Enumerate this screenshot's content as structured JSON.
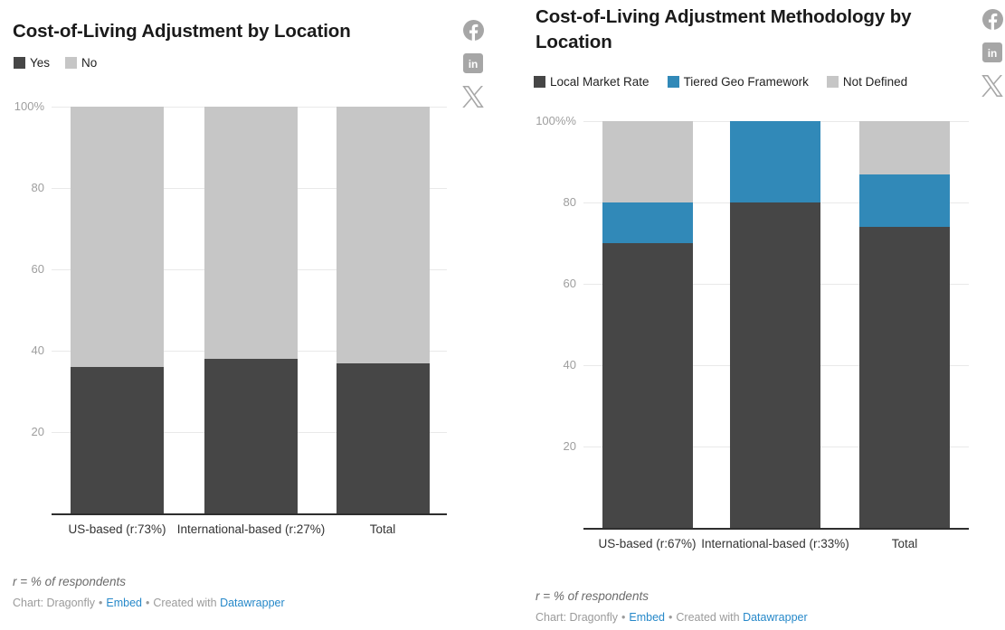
{
  "page": {
    "background": "#ffffff"
  },
  "colors": {
    "dark_series": "#464646",
    "blue_series": "#3189b8",
    "gray_series": "#c6c6c6",
    "link_blue": "#2688c9",
    "icon_gray": "#a6a6a6",
    "gridline": "#e9e9e9",
    "axis_line": "#2e2e2e"
  },
  "icons": {
    "facebook": "facebook-share-icon",
    "linkedin": "linkedin-share-icon",
    "x": "x-share-icon"
  },
  "chart_data": [
    {
      "type": "bar",
      "stacked": true,
      "orientation": "vertical",
      "title": "Cost-of-Living Adjustment by Location",
      "categories": [
        "US-based (r:73%)",
        "International-based (r:27%)",
        "Total"
      ],
      "series": [
        {
          "name": "Yes",
          "color": "#464646",
          "values": [
            36,
            38,
            37
          ]
        },
        {
          "name": "No",
          "color": "#c6c6c6",
          "values": [
            64,
            62,
            63
          ]
        }
      ],
      "ylim": [
        0,
        100
      ],
      "unit": "%",
      "yticks": [
        {
          "value": 100,
          "label": "100%"
        },
        {
          "value": 80,
          "label": "80"
        },
        {
          "value": 60,
          "label": "60"
        },
        {
          "value": 40,
          "label": "40"
        },
        {
          "value": 20,
          "label": "20"
        }
      ],
      "grid": true,
      "legend_position": "top-left",
      "footnote": "r = % of respondents",
      "byline": {
        "prefix": "Chart: Dragonfly",
        "sep": "•",
        "embed": "Embed",
        "middle": "Created with",
        "tool": "Datawrapper"
      }
    },
    {
      "type": "bar",
      "stacked": true,
      "orientation": "vertical",
      "title": "Cost-of-Living Adjustment Methodology by Location",
      "categories": [
        "US-based (r:67%)",
        "International-based (r:33%)",
        "Total"
      ],
      "series": [
        {
          "name": "Local Market Rate",
          "color": "#464646",
          "values": [
            70,
            80,
            74
          ]
        },
        {
          "name": "Tiered Geo Framework",
          "color": "#3189b8",
          "values": [
            10,
            20,
            13
          ]
        },
        {
          "name": "Not Defined",
          "color": "#c6c6c6",
          "values": [
            20,
            0,
            13
          ]
        }
      ],
      "ylim": [
        0,
        100
      ],
      "unit": "%",
      "yticks": [
        {
          "value": 100,
          "label": "100%%"
        },
        {
          "value": 80,
          "label": "80"
        },
        {
          "value": 60,
          "label": "60"
        },
        {
          "value": 40,
          "label": "40"
        },
        {
          "value": 20,
          "label": "20"
        }
      ],
      "grid": true,
      "legend_position": "top-left",
      "footnote": "r = % of respondents",
      "byline": {
        "prefix": "Chart: Dragonfly",
        "sep": "•",
        "embed": "Embed",
        "middle": "Created with",
        "tool": "Datawrapper"
      }
    }
  ]
}
